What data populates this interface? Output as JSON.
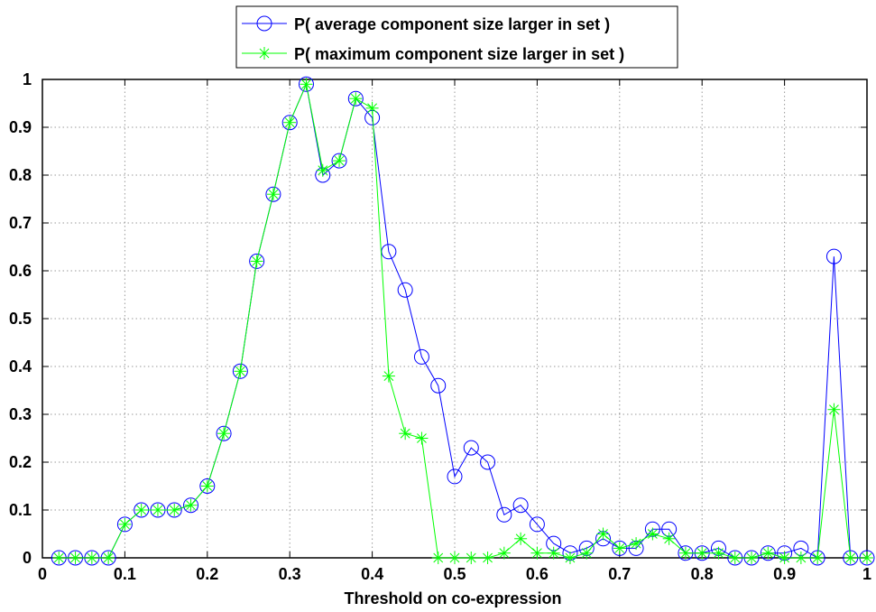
{
  "chart_data": {
    "type": "line",
    "xlabel": "Threshold on co-expression",
    "ylabel": "",
    "xlim": [
      0,
      1
    ],
    "ylim": [
      0,
      1
    ],
    "xticks": [
      "0",
      "0.1",
      "0.2",
      "0.3",
      "0.4",
      "0.5",
      "0.6",
      "0.7",
      "0.8",
      "0.9",
      "1"
    ],
    "yticks": [
      "0",
      "0.1",
      "0.2",
      "0.3",
      "0.4",
      "0.5",
      "0.6",
      "0.7",
      "0.8",
      "0.9",
      "1"
    ],
    "grid": true,
    "legend_position": "top-center",
    "x": [
      0.02,
      0.04,
      0.06,
      0.08,
      0.1,
      0.12,
      0.14,
      0.16,
      0.18,
      0.2,
      0.22,
      0.24,
      0.26,
      0.28,
      0.3,
      0.32,
      0.34,
      0.36,
      0.38,
      0.4,
      0.42,
      0.44,
      0.46,
      0.48,
      0.5,
      0.52,
      0.54,
      0.56,
      0.58,
      0.6,
      0.62,
      0.64,
      0.66,
      0.68,
      0.7,
      0.72,
      0.74,
      0.76,
      0.78,
      0.8,
      0.82,
      0.84,
      0.86,
      0.88,
      0.9,
      0.92,
      0.94,
      0.96,
      0.98,
      1.0
    ],
    "series": [
      {
        "name": "P( average component size larger in set )",
        "color": "#0000ff",
        "marker": "circle",
        "values": [
          0,
          0,
          0,
          0,
          0.07,
          0.1,
          0.1,
          0.1,
          0.11,
          0.15,
          0.26,
          0.39,
          0.62,
          0.76,
          0.91,
          0.99,
          0.8,
          0.83,
          0.96,
          0.92,
          0.64,
          0.56,
          0.42,
          0.36,
          0.17,
          0.23,
          0.2,
          0.09,
          0.11,
          0.07,
          0.03,
          0.01,
          0.02,
          0.04,
          0.02,
          0.02,
          0.06,
          0.06,
          0.01,
          0.01,
          0.02,
          0,
          0,
          0.01,
          0.01,
          0.02,
          0,
          0.63,
          0,
          0
        ]
      },
      {
        "name": "P( maximum component size larger in set )",
        "color": "#00ff00",
        "marker": "star",
        "values": [
          0,
          0,
          0,
          0,
          0.07,
          0.1,
          0.1,
          0.1,
          0.11,
          0.15,
          0.26,
          0.39,
          0.62,
          0.76,
          0.91,
          0.99,
          0.81,
          0.83,
          0.96,
          0.94,
          0.38,
          0.26,
          0.25,
          0,
          0,
          0,
          0,
          0.01,
          0.04,
          0.01,
          0.01,
          0,
          0.01,
          0.05,
          0.02,
          0.03,
          0.05,
          0.04,
          0.01,
          0.01,
          0.01,
          0,
          0,
          0.01,
          0,
          0,
          0,
          0.31,
          0,
          0
        ]
      }
    ]
  }
}
